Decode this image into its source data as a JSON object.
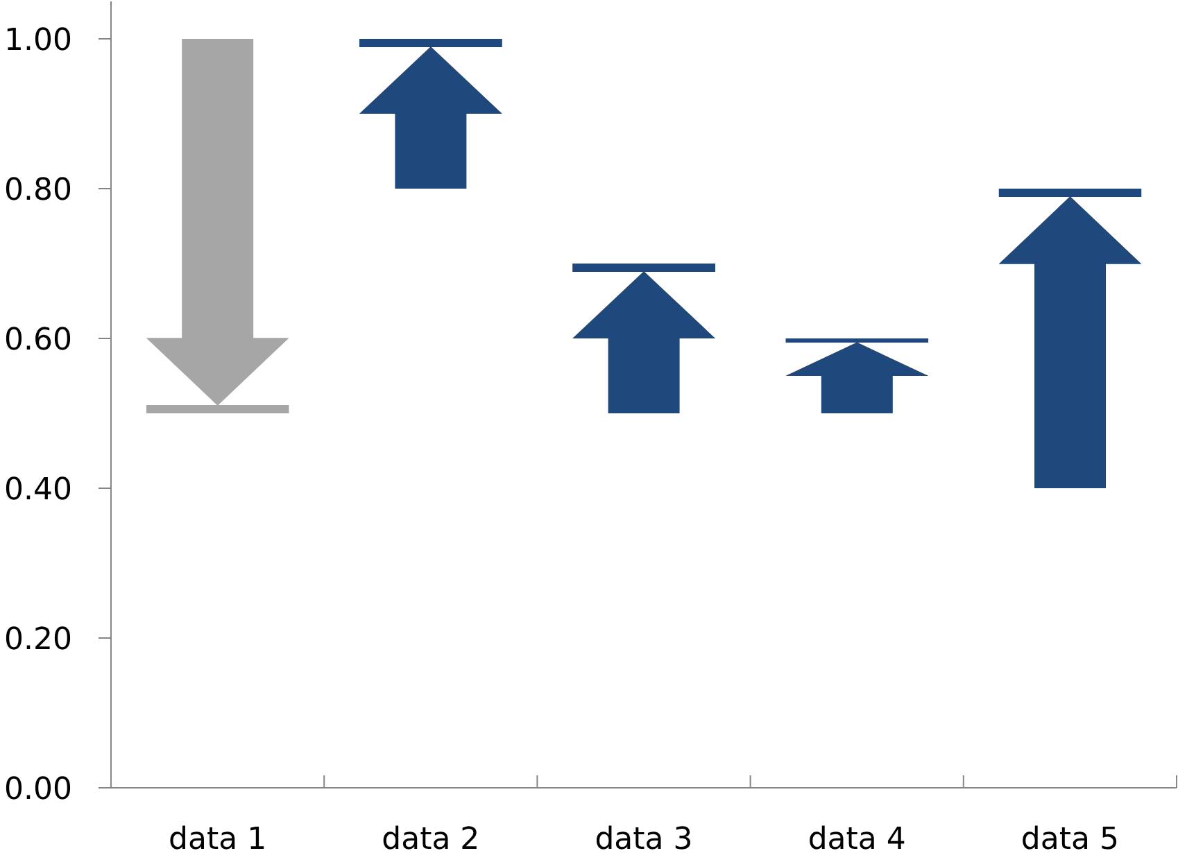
{
  "chart_data": {
    "type": "bar",
    "categories": [
      "data 1",
      "data 2",
      "data 3",
      "data 4",
      "data 5"
    ],
    "base": [
      1.0,
      0.8,
      0.5,
      0.5,
      0.4
    ],
    "values": [
      -0.5,
      0.2,
      0.2,
      0.1,
      0.4
    ],
    "colors": [
      "#a6a6a6",
      "#1f497d",
      "#1f497d",
      "#1f497d",
      "#1f497d"
    ],
    "ylim": [
      0,
      1.05
    ],
    "yticks": [
      {
        "value": 0,
        "label": "0.00"
      },
      {
        "value": 0.2,
        "label": "0.20"
      },
      {
        "value": 0.4,
        "label": "0.40"
      },
      {
        "value": 0.6,
        "label": "0.60"
      },
      {
        "value": 0.8,
        "label": "0.80"
      },
      {
        "value": 1.0,
        "label": "1.00"
      }
    ]
  }
}
